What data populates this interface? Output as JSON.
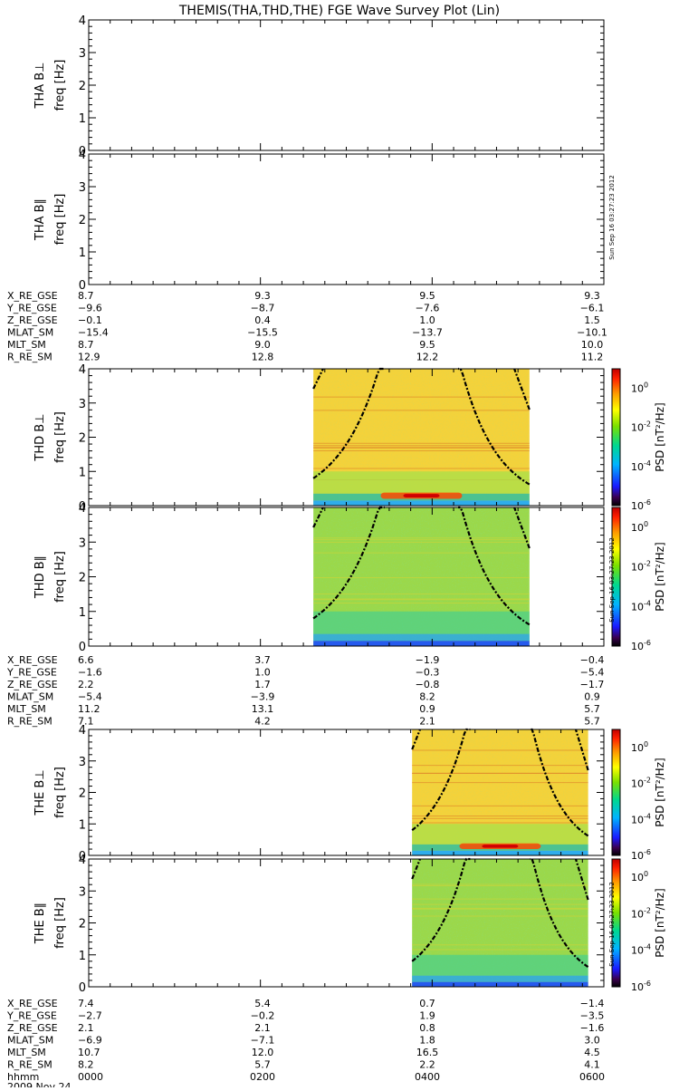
{
  "title": "THEMIS(THA,THD,THE) FGE Wave Survey Plot (Lin)",
  "timestamp": "Sun Sep 16 03:27:23 2012",
  "time_axis": {
    "label": "hhmm",
    "date": "2009 Nov 24",
    "ticks": [
      "0000",
      "0200",
      "0400",
      "0600"
    ]
  },
  "colorbar": {
    "label": "PSD [nT²/Hz]",
    "ticks": [
      {
        "base": "10",
        "exp": "0",
        "value": 1
      },
      {
        "base": "10",
        "exp": "-2",
        "value": 0.01
      },
      {
        "base": "10",
        "exp": "-4",
        "value": 0.0001
      },
      {
        "base": "10",
        "exp": "-6",
        "value": 1e-06
      }
    ]
  },
  "ephemeris_labels": [
    "X_RE_GSE",
    "Y_RE_GSE",
    "Z_RE_GSE",
    "MLAT_SM",
    "MLT_SM",
    "R_RE_SM"
  ],
  "probes": [
    {
      "name": "THA",
      "panels": [
        "THA B⊥",
        "THA B∥"
      ],
      "ephemeris": [
        [
          "8.7",
          "9.3",
          "9.5",
          "9.3"
        ],
        [
          "−9.6",
          "−8.7",
          "−7.6",
          "−6.1"
        ],
        [
          "−0.1",
          "0.4",
          "1.0",
          "1.5"
        ],
        [
          "−15.4",
          "−15.5",
          "−13.7",
          "−10.1"
        ],
        [
          "8.7",
          "9.0",
          "9.5",
          "10.0"
        ],
        [
          "12.9",
          "12.8",
          "12.2",
          "11.2"
        ]
      ]
    },
    {
      "name": "THD",
      "panels": [
        "THD B⊥",
        "THD B∥"
      ],
      "ephemeris": [
        [
          "6.6",
          "3.7",
          "−1.9",
          "−0.4"
        ],
        [
          "−1.6",
          "1.0",
          "−0.3",
          "−5.4"
        ],
        [
          "2.2",
          "1.7",
          "−0.8",
          "−1.7"
        ],
        [
          "−5.4",
          "−3.9",
          "8.2",
          "0.9"
        ],
        [
          "11.2",
          "13.1",
          "0.9",
          "5.7"
        ],
        [
          "7.1",
          "4.2",
          "2.1",
          "5.7"
        ]
      ]
    },
    {
      "name": "THE",
      "panels": [
        "THE B⊥",
        "THE B∥"
      ],
      "ephemeris": [
        [
          "7.4",
          "5.4",
          "0.7",
          "−1.4"
        ],
        [
          "−2.7",
          "−0.2",
          "1.9",
          "−3.5"
        ],
        [
          "2.1",
          "2.1",
          "0.8",
          "−1.6"
        ],
        [
          "−6.9",
          "−7.1",
          "1.8",
          "3.0"
        ],
        [
          "10.7",
          "12.0",
          "16.5",
          "4.5"
        ],
        [
          "8.2",
          "5.7",
          "2.2",
          "4.1"
        ]
      ]
    }
  ],
  "chart_data": [
    {
      "type": "heatmap",
      "ylabel": "freq [Hz]",
      "panel": "THA B⊥",
      "ylim": [
        0,
        4
      ],
      "yticks": [
        0,
        1,
        2,
        3,
        4
      ],
      "xlim": [
        "0000",
        "0600"
      ],
      "data_start": null,
      "data_end": null
    },
    {
      "type": "heatmap",
      "ylabel": "freq [Hz]",
      "panel": "THA B∥",
      "ylim": [
        0,
        4
      ],
      "yticks": [
        0,
        1,
        2,
        3,
        4
      ],
      "xlim": [
        "0000",
        "0600"
      ],
      "data_start": null,
      "data_end": null
    },
    {
      "type": "heatmap",
      "ylabel": "freq [Hz]",
      "panel": "THD B⊥",
      "ylim": [
        0,
        4
      ],
      "yticks": [
        0,
        1,
        2,
        3,
        4
      ],
      "xlim": [
        "0000",
        "0600"
      ],
      "data_start": "0237",
      "data_end": "0508",
      "colorscale": "rainbow",
      "zlim": [
        1e-06,
        10
      ],
      "log_z": true
    },
    {
      "type": "heatmap",
      "ylabel": "freq [Hz]",
      "panel": "THD B∥",
      "ylim": [
        0,
        4
      ],
      "yticks": [
        0,
        1,
        2,
        3,
        4
      ],
      "xlim": [
        "0000",
        "0600"
      ],
      "data_start": "0237",
      "data_end": "0508",
      "colorscale": "rainbow",
      "zlim": [
        1e-06,
        10
      ],
      "log_z": true
    },
    {
      "type": "heatmap",
      "ylabel": "freq [Hz]",
      "panel": "THE B⊥",
      "ylim": [
        0,
        4
      ],
      "yticks": [
        0,
        1,
        2,
        3,
        4
      ],
      "xlim": [
        "0000",
        "0600"
      ],
      "data_start": "0346",
      "data_end": "0549",
      "colorscale": "rainbow",
      "zlim": [
        1e-06,
        10
      ],
      "log_z": true
    },
    {
      "type": "heatmap",
      "ylabel": "freq [Hz]",
      "panel": "THE B∥",
      "ylim": [
        0,
        4
      ],
      "yticks": [
        0,
        1,
        2,
        3,
        4
      ],
      "xlim": [
        "0000",
        "0600"
      ],
      "data_start": "0346",
      "data_end": "0549",
      "colorscale": "rainbow",
      "zlim": [
        1e-06,
        10
      ],
      "log_z": true
    }
  ]
}
